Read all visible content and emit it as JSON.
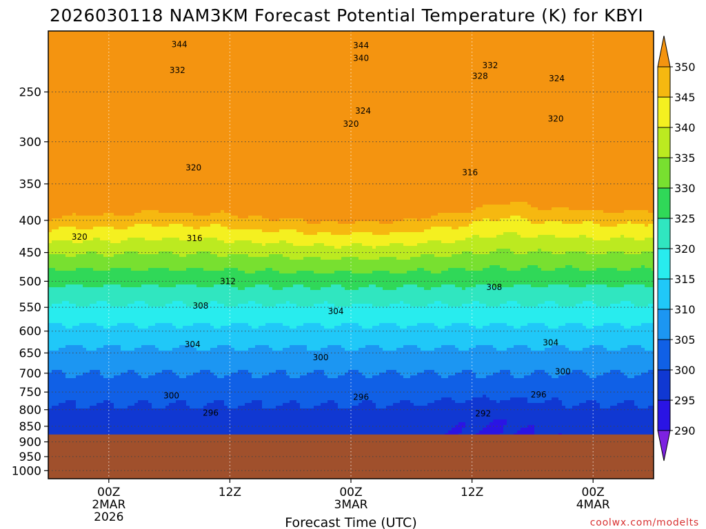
{
  "chart_data": {
    "type": "heatmap",
    "title": "2026030118 NAM3KM Forecast Potential Temperature (K) for KBYI",
    "xlabel": "Forecast Time (UTC)",
    "ylabel": "",
    "y_scale": "log-pressure",
    "x_ticks": [
      {
        "hour": 6,
        "lines": [
          "00Z",
          "2MAR",
          "2026"
        ]
      },
      {
        "hour": 18,
        "lines": [
          "12Z"
        ]
      },
      {
        "hour": 30,
        "lines": [
          "00Z",
          "3MAR"
        ]
      },
      {
        "hour": 42,
        "lines": [
          "12Z"
        ]
      },
      {
        "hour": 54,
        "lines": [
          "00Z",
          "4MAR"
        ]
      }
    ],
    "xlim_hours": [
      0,
      60
    ],
    "y_ticks": [
      250,
      300,
      350,
      400,
      450,
      500,
      550,
      600,
      650,
      700,
      750,
      800,
      850,
      900,
      950,
      1000
    ],
    "ylim_hPa": [
      200,
      1030
    ],
    "ground_level_hPa": 876,
    "colorbar": {
      "levels": [
        290,
        295,
        300,
        305,
        310,
        315,
        320,
        325,
        330,
        335,
        340,
        345,
        350
      ],
      "colors": [
        "#7d22e0",
        "#2a14e4",
        "#1038d2",
        "#1060e6",
        "#1c96f2",
        "#20c8f8",
        "#28ecee",
        "#30e6c0",
        "#30d858",
        "#78e030",
        "#bcea20",
        "#f4f020",
        "#f6b810",
        "#f49410"
      ],
      "extend": "both"
    },
    "contour_labels": [
      {
        "value": "344",
        "hour": 13.0,
        "p": 210
      },
      {
        "value": "344",
        "hour": 31.0,
        "p": 211
      },
      {
        "value": "340",
        "hour": 31.0,
        "p": 221
      },
      {
        "value": "332",
        "hour": 12.8,
        "p": 231
      },
      {
        "value": "332",
        "hour": 43.8,
        "p": 227
      },
      {
        "value": "328",
        "hour": 42.8,
        "p": 236
      },
      {
        "value": "324",
        "hour": 50.4,
        "p": 238
      },
      {
        "value": "324",
        "hour": 31.2,
        "p": 268
      },
      {
        "value": "320",
        "hour": 30.0,
        "p": 281
      },
      {
        "value": "320",
        "hour": 50.3,
        "p": 276
      },
      {
        "value": "320",
        "hour": 14.4,
        "p": 330
      },
      {
        "value": "316",
        "hour": 41.8,
        "p": 336
      },
      {
        "value": "320",
        "hour": 3.1,
        "p": 425
      },
      {
        "value": "316",
        "hour": 14.5,
        "p": 427
      },
      {
        "value": "312",
        "hour": 17.8,
        "p": 500
      },
      {
        "value": "308",
        "hour": 44.2,
        "p": 511
      },
      {
        "value": "308",
        "hour": 15.1,
        "p": 547
      },
      {
        "value": "304",
        "hour": 28.5,
        "p": 558
      },
      {
        "value": "304",
        "hour": 14.3,
        "p": 630
      },
      {
        "value": "304",
        "hour": 49.8,
        "p": 626
      },
      {
        "value": "300",
        "hour": 27.0,
        "p": 661
      },
      {
        "value": "300",
        "hour": 51.0,
        "p": 696
      },
      {
        "value": "300",
        "hour": 12.2,
        "p": 760
      },
      {
        "value": "296",
        "hour": 31.0,
        "p": 764
      },
      {
        "value": "296",
        "hour": 48.6,
        "p": 757
      },
      {
        "value": "296",
        "hour": 16.1,
        "p": 810
      },
      {
        "value": "292",
        "hour": 43.1,
        "p": 812
      }
    ],
    "grid": true,
    "legend": "colorbar-right"
  },
  "credit": "coolwx.com/modelts",
  "theme": {
    "ground": "#a0502c",
    "contour_line": "#000000",
    "grid_line": "#444444"
  }
}
